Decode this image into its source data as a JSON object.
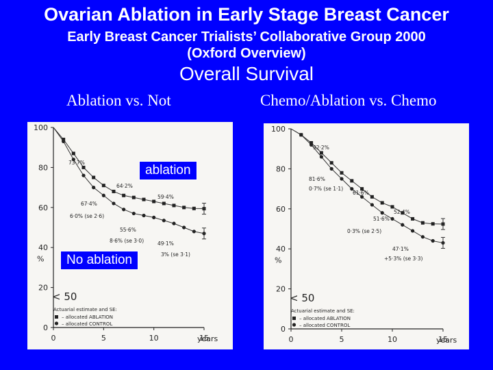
{
  "title": "Ovarian Ablation in Early Stage Breast Cancer",
  "subtitle_line1": "Early Breast Cancer Trialists’ Collaborative Group 2000",
  "subtitle_line2": "(Oxford Overview)",
  "heading": "Overall Survival",
  "left_panel_title": "Ablation vs. Not",
  "right_panel_title": "Chemo/Ablation vs. Chemo",
  "label_ablation": "ablation",
  "label_no_ablation": "No ablation",
  "colors": {
    "background": "#0000ff",
    "panel": "#f7f6f3",
    "ink": "#222222"
  },
  "chart_data": [
    {
      "type": "line",
      "panel": "Ablation vs. Not",
      "group_label": "< 50",
      "ylabel": "%",
      "xlabel": "years",
      "xlim": [
        0,
        15
      ],
      "ylim": [
        0,
        100
      ],
      "x_ticks": [
        0,
        5,
        10,
        15
      ],
      "y_ticks": [
        0,
        20,
        40,
        60,
        80,
        100
      ],
      "legend_title": "Actuarial estimate and SE:",
      "legend": [
        "allocated ABLATION",
        "allocated CONTROL"
      ],
      "series": [
        {
          "name": "allocated ABLATION",
          "x": [
            0,
            1,
            2,
            3,
            4,
            5,
            6,
            7,
            8,
            9,
            10,
            11,
            12,
            13,
            14,
            15
          ],
          "y": [
            100,
            94,
            87,
            80,
            75,
            71,
            68,
            66,
            65,
            64,
            63,
            62,
            61,
            60,
            59.5,
            59.4
          ]
        },
        {
          "name": "allocated CONTROL",
          "x": [
            0,
            1,
            2,
            3,
            4,
            5,
            6,
            7,
            8,
            9,
            10,
            11,
            12,
            13,
            14,
            15
          ],
          "y": [
            100,
            93,
            84,
            76,
            70,
            66,
            62,
            59,
            57,
            56,
            55,
            53.5,
            52,
            50,
            48,
            47
          ]
        }
      ],
      "annotations": [
        "73·7%",
        "64·2%",
        "67·4%",
        "6·0% (se 2·6)",
        "59·4%",
        "55·6%",
        "8·6% (se 3·0)",
        "49·1%",
        "3% (se 3·1)"
      ]
    },
    {
      "type": "line",
      "panel": "Chemo/Ablation vs. Chemo",
      "group_label": "< 50",
      "ylabel": "%",
      "xlabel": "years",
      "xlim": [
        0,
        15
      ],
      "ylim": [
        0,
        100
      ],
      "x_ticks": [
        0,
        5,
        10,
        15
      ],
      "y_ticks": [
        0,
        20,
        40,
        60,
        80,
        100
      ],
      "legend_title": "Actuarial estimate and SE:",
      "legend": [
        "allocated ABLATION",
        "allocated CONTROL"
      ],
      "series": [
        {
          "name": "allocated ABLATION",
          "x": [
            0,
            1,
            2,
            3,
            4,
            5,
            6,
            7,
            8,
            9,
            10,
            11,
            12,
            13,
            14,
            15
          ],
          "y": [
            100,
            97,
            93,
            88,
            83,
            78,
            74,
            70,
            66,
            63,
            61,
            58,
            55,
            53,
            52.5,
            52.4
          ]
        },
        {
          "name": "allocated CONTROL",
          "x": [
            0,
            1,
            2,
            3,
            4,
            5,
            6,
            7,
            8,
            9,
            10,
            11,
            12,
            13,
            14,
            15
          ],
          "y": [
            100,
            97,
            92,
            86,
            80,
            75,
            70,
            66,
            62,
            58,
            55,
            52,
            49,
            46,
            44,
            43
          ]
        }
      ],
      "annotations": [
        "92·2%",
        "81·6%",
        "0·7% (se 1·1)",
        "61·6%",
        "52·4%",
        "51·6%",
        "0·3% (se 2·5)",
        "47·1%",
        "+5·3% (se 3·3)"
      ]
    }
  ]
}
